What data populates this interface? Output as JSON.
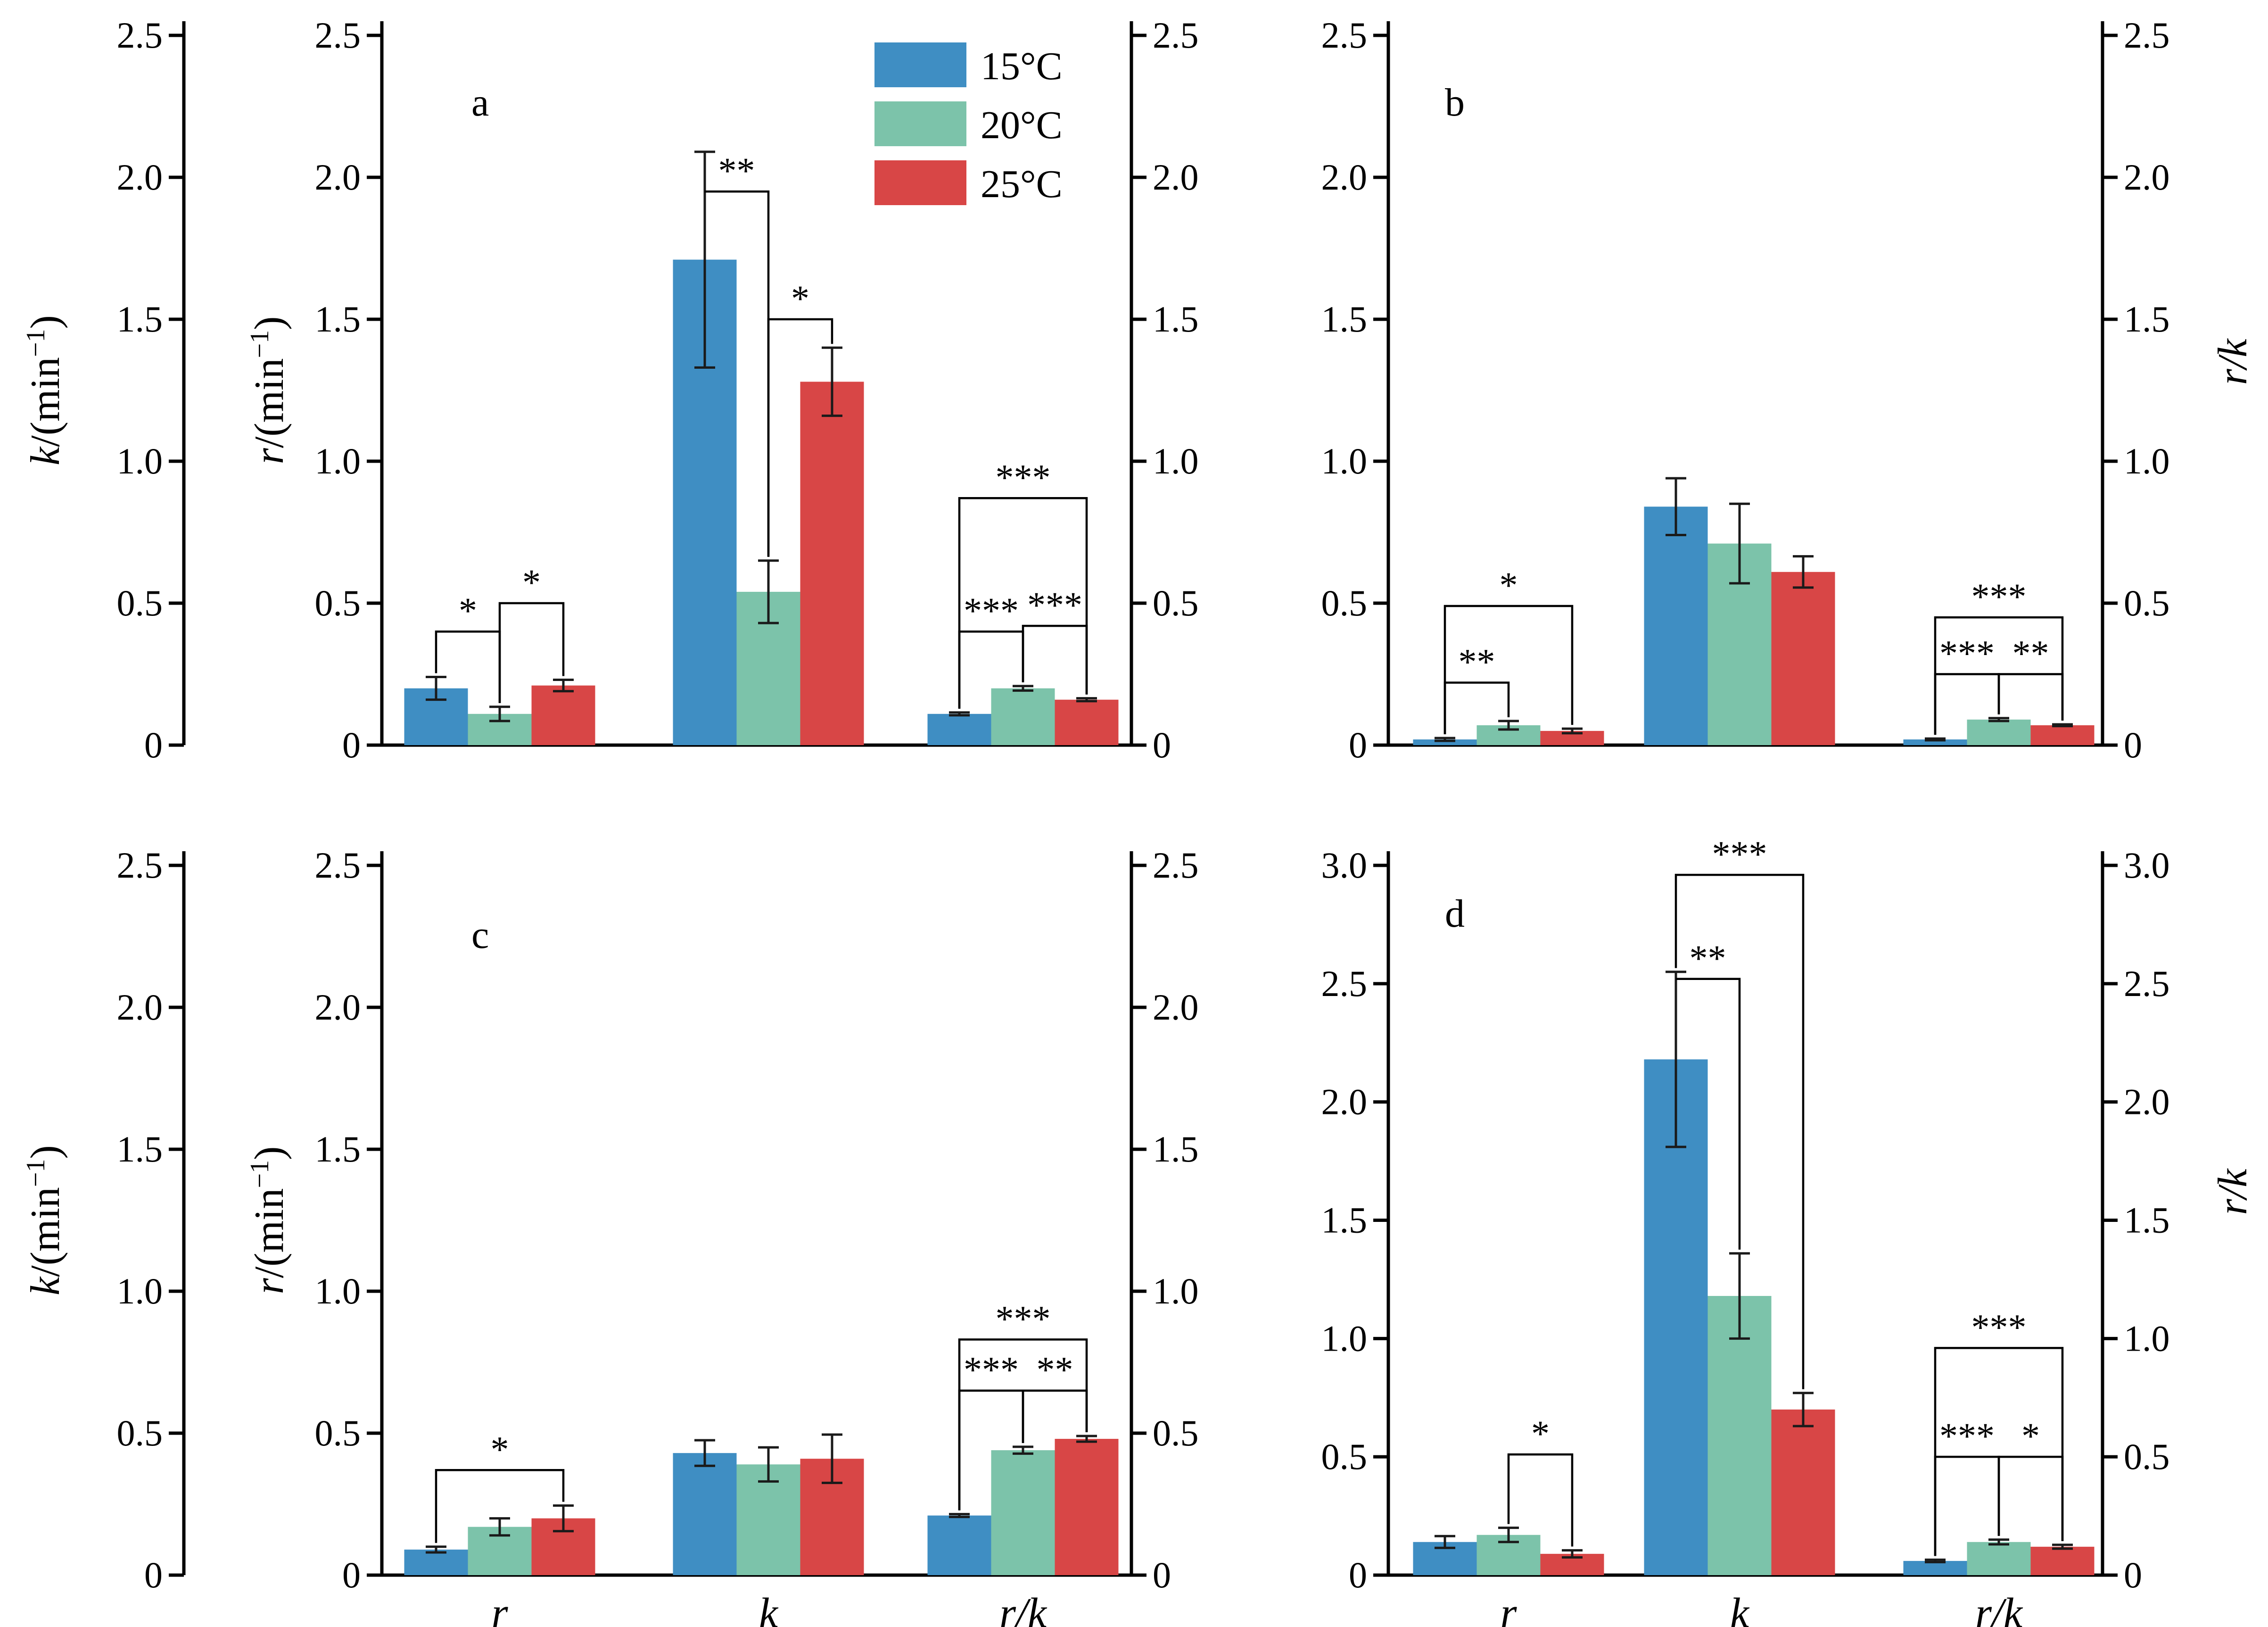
{
  "legend": {
    "entries": [
      {
        "label": "15°C",
        "color": "#3f8ec3"
      },
      {
        "label": "20°C",
        "color": "#7cc3aa"
      },
      {
        "label": "25°C",
        "color": "#d84646"
      }
    ]
  },
  "axis_labels": {
    "k": [
      "k",
      "/(min",
      "−1",
      ")"
    ],
    "r": [
      "r",
      "/(min",
      "−1",
      ")"
    ],
    "rk": "r/k"
  },
  "categories": [
    "r",
    "k",
    "r/k"
  ],
  "chart_data": [
    {
      "type": "bar",
      "panel": "a",
      "categories": [
        "r",
        "k",
        "r/k"
      ],
      "ylim_left": [
        0,
        2.5
      ],
      "ylim_right": [
        0,
        2.5
      ],
      "yticks": [
        "0",
        "0.5",
        "1.0",
        "1.5",
        "2.0",
        "2.5"
      ],
      "yticks_right": [
        "0",
        "0.5",
        "1.0",
        "1.5",
        "2.0",
        "2.5"
      ],
      "series": [
        {
          "name": "15°C",
          "values": [
            0.2,
            1.71,
            0.11
          ],
          "errors": [
            0.04,
            0.38,
            0.005
          ]
        },
        {
          "name": "20°C",
          "values": [
            0.11,
            0.54,
            0.2
          ],
          "errors": [
            0.025,
            0.11,
            0.008
          ]
        },
        {
          "name": "25°C",
          "values": [
            0.21,
            1.28,
            0.16
          ],
          "errors": [
            0.02,
            0.12,
            0.005
          ]
        }
      ],
      "significance": [
        {
          "cat": 0,
          "from": 0,
          "to": 1,
          "y": 0.4,
          "label": "*"
        },
        {
          "cat": 0,
          "from": 1,
          "to": 2,
          "y": 0.5,
          "label": "*"
        },
        {
          "cat": 1,
          "from": 0,
          "to": 1,
          "y": 1.95,
          "label": "**"
        },
        {
          "cat": 1,
          "from": 1,
          "to": 2,
          "y": 1.5,
          "label": "*"
        },
        {
          "cat": 2,
          "from": 0,
          "to": 1,
          "y": 0.4,
          "label": "***"
        },
        {
          "cat": 2,
          "from": 1,
          "to": 2,
          "y": 0.42,
          "label": "***"
        },
        {
          "cat": 2,
          "from": 0,
          "to": 2,
          "y": 0.87,
          "label": "***"
        }
      ]
    },
    {
      "type": "bar",
      "panel": "b",
      "categories": [
        "r",
        "k",
        "r/k"
      ],
      "ylim_left": [
        0,
        2.5
      ],
      "ylim_right": [
        0,
        2.5
      ],
      "yticks": [
        "0",
        "0.5",
        "1.0",
        "1.5",
        "2.0",
        "2.5"
      ],
      "yticks_right": [
        "0",
        "0.5",
        "1.0",
        "1.5",
        "2.0",
        "2.5"
      ],
      "series": [
        {
          "name": "15°C",
          "values": [
            0.02,
            0.84,
            0.02
          ],
          "errors": [
            0.005,
            0.1,
            0.003
          ]
        },
        {
          "name": "20°C",
          "values": [
            0.07,
            0.71,
            0.09
          ],
          "errors": [
            0.015,
            0.14,
            0.005
          ]
        },
        {
          "name": "25°C",
          "values": [
            0.05,
            0.61,
            0.07
          ],
          "errors": [
            0.008,
            0.055,
            0.003
          ]
        }
      ],
      "significance": [
        {
          "cat": 0,
          "from": 0,
          "to": 1,
          "y": 0.22,
          "label": "**"
        },
        {
          "cat": 0,
          "from": 0,
          "to": 2,
          "y": 0.49,
          "label": "*"
        },
        {
          "cat": 2,
          "from": 0,
          "to": 1,
          "y": 0.25,
          "label": "***"
        },
        {
          "cat": 2,
          "from": 1,
          "to": 2,
          "y": 0.25,
          "label": "**"
        },
        {
          "cat": 2,
          "from": 0,
          "to": 2,
          "y": 0.45,
          "label": "***"
        }
      ]
    },
    {
      "type": "bar",
      "panel": "c",
      "categories": [
        "r",
        "k",
        "r/k"
      ],
      "ylim_left": [
        0,
        2.5
      ],
      "ylim_right": [
        0,
        2.5
      ],
      "yticks": [
        "0",
        "0.5",
        "1.0",
        "1.5",
        "2.0",
        "2.5"
      ],
      "yticks_right": [
        "0",
        "0.5",
        "1.0",
        "1.5",
        "2.0",
        "2.5"
      ],
      "series": [
        {
          "name": "15°C",
          "values": [
            0.09,
            0.43,
            0.21
          ],
          "errors": [
            0.01,
            0.045,
            0.005
          ]
        },
        {
          "name": "20°C",
          "values": [
            0.17,
            0.39,
            0.44
          ],
          "errors": [
            0.03,
            0.06,
            0.012
          ]
        },
        {
          "name": "25°C",
          "values": [
            0.2,
            0.41,
            0.48
          ],
          "errors": [
            0.045,
            0.085,
            0.01
          ]
        }
      ],
      "significance": [
        {
          "cat": 0,
          "from": 0,
          "to": 2,
          "y": 0.37,
          "label": "*"
        },
        {
          "cat": 2,
          "from": 0,
          "to": 1,
          "y": 0.65,
          "label": "***"
        },
        {
          "cat": 2,
          "from": 1,
          "to": 2,
          "y": 0.65,
          "label": "**"
        },
        {
          "cat": 2,
          "from": 0,
          "to": 2,
          "y": 0.83,
          "label": "***"
        }
      ]
    },
    {
      "type": "bar",
      "panel": "d",
      "categories": [
        "r",
        "k",
        "r/k"
      ],
      "ylim_left": [
        0,
        3.0
      ],
      "ylim_right": [
        0,
        3.0
      ],
      "yticks": [
        "0",
        "0.5",
        "1.0",
        "1.5",
        "2.0",
        "2.5",
        "3.0"
      ],
      "yticks_right": [
        "0",
        "0.5",
        "1.0",
        "1.5",
        "2.0",
        "2.5",
        "3.0"
      ],
      "series": [
        {
          "name": "15°C",
          "values": [
            0.14,
            2.18,
            0.06
          ],
          "errors": [
            0.025,
            0.37,
            0.005
          ]
        },
        {
          "name": "20°C",
          "values": [
            0.17,
            1.18,
            0.14
          ],
          "errors": [
            0.03,
            0.18,
            0.01
          ]
        },
        {
          "name": "25°C",
          "values": [
            0.09,
            0.7,
            0.12
          ],
          "errors": [
            0.015,
            0.07,
            0.008
          ]
        }
      ],
      "significance": [
        {
          "cat": 0,
          "from": 1,
          "to": 2,
          "y": 0.51,
          "label": "*"
        },
        {
          "cat": 1,
          "from": 0,
          "to": 1,
          "y": 2.52,
          "label": "**"
        },
        {
          "cat": 1,
          "from": 0,
          "to": 2,
          "y": 2.96,
          "label": "***"
        },
        {
          "cat": 2,
          "from": 0,
          "to": 1,
          "y": 0.5,
          "label": "***"
        },
        {
          "cat": 2,
          "from": 1,
          "to": 2,
          "y": 0.5,
          "label": "*"
        },
        {
          "cat": 2,
          "from": 0,
          "to": 2,
          "y": 0.96,
          "label": "***"
        }
      ]
    }
  ]
}
